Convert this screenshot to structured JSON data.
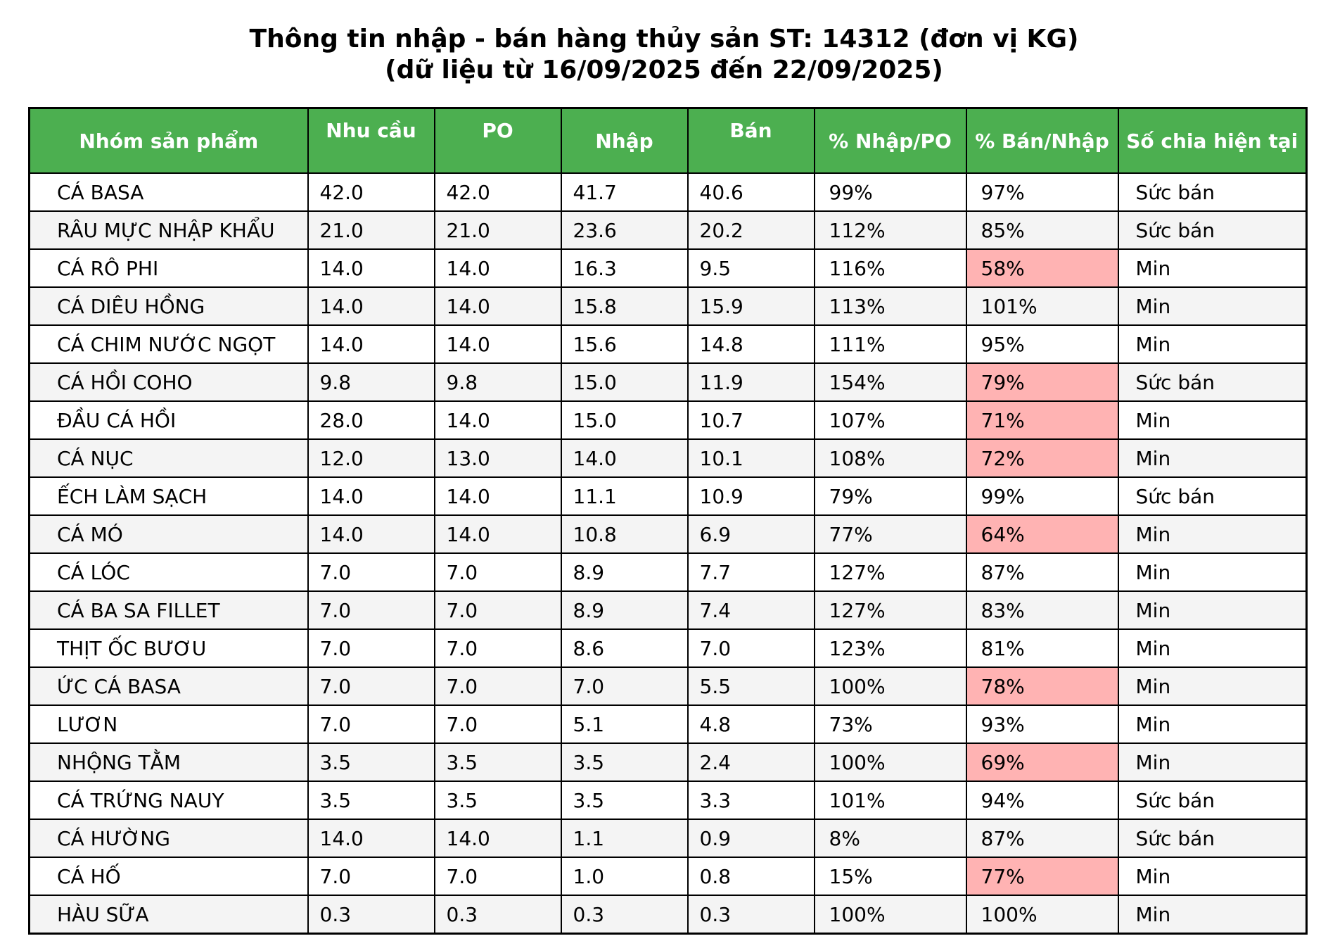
{
  "chart_data": {
    "type": "table",
    "title_line1": "Thông tin nhập - bán hàng thủy sản ST: 14312 (đơn vị KG)",
    "title_line2": "(dữ liệu từ 16/09/2025 đến 22/09/2025)",
    "columns": [
      "Nhóm sản phẩm",
      "Nhu cầu",
      "PO",
      "Nhập",
      "Bán",
      "% Nhập/PO",
      "% Bán/Nhập",
      "Số chia hiện tại"
    ],
    "rows": [
      {
        "cells": [
          "CÁ BASA",
          "42.0",
          "42.0",
          "41.7",
          "40.6",
          "99%",
          "97%",
          "Sức bán"
        ],
        "flag_ban_nhap": false
      },
      {
        "cells": [
          "RÂU MỰC NHẬP KHẨU",
          "21.0",
          "21.0",
          "23.6",
          "20.2",
          "112%",
          "85%",
          "Sức bán"
        ],
        "flag_ban_nhap": false
      },
      {
        "cells": [
          "CÁ RÔ PHI",
          "14.0",
          "14.0",
          "16.3",
          "9.5",
          "116%",
          "58%",
          "Min"
        ],
        "flag_ban_nhap": true
      },
      {
        "cells": [
          "CÁ DIÊU HỒNG",
          "14.0",
          "14.0",
          "15.8",
          "15.9",
          "113%",
          "101%",
          "Min"
        ],
        "flag_ban_nhap": false
      },
      {
        "cells": [
          "CÁ CHIM NƯỚC NGỌT",
          "14.0",
          "14.0",
          "15.6",
          "14.8",
          "111%",
          "95%",
          "Min"
        ],
        "flag_ban_nhap": false
      },
      {
        "cells": [
          "CÁ HỒI COHO",
          "9.8",
          "9.8",
          "15.0",
          "11.9",
          "154%",
          "79%",
          "Sức bán"
        ],
        "flag_ban_nhap": true
      },
      {
        "cells": [
          "ĐẦU CÁ HỒI",
          "28.0",
          "14.0",
          "15.0",
          "10.7",
          "107%",
          "71%",
          "Min"
        ],
        "flag_ban_nhap": true
      },
      {
        "cells": [
          "CÁ NỤC",
          "12.0",
          "13.0",
          "14.0",
          "10.1",
          "108%",
          "72%",
          "Min"
        ],
        "flag_ban_nhap": true
      },
      {
        "cells": [
          "ẾCH LÀM SẠCH",
          "14.0",
          "14.0",
          "11.1",
          "10.9",
          "79%",
          "99%",
          "Sức bán"
        ],
        "flag_ban_nhap": false
      },
      {
        "cells": [
          "CÁ MÓ",
          "14.0",
          "14.0",
          "10.8",
          "6.9",
          "77%",
          "64%",
          "Min"
        ],
        "flag_ban_nhap": true
      },
      {
        "cells": [
          "CÁ LÓC",
          "7.0",
          "7.0",
          "8.9",
          "7.7",
          "127%",
          "87%",
          "Min"
        ],
        "flag_ban_nhap": false
      },
      {
        "cells": [
          "CÁ BA SA FILLET",
          "7.0",
          "7.0",
          "8.9",
          "7.4",
          "127%",
          "83%",
          "Min"
        ],
        "flag_ban_nhap": false
      },
      {
        "cells": [
          "THỊT ỐC BƯƠU",
          "7.0",
          "7.0",
          "8.6",
          "7.0",
          "123%",
          "81%",
          "Min"
        ],
        "flag_ban_nhap": false
      },
      {
        "cells": [
          "ỨC CÁ BASA",
          "7.0",
          "7.0",
          "7.0",
          "5.5",
          "100%",
          "78%",
          "Min"
        ],
        "flag_ban_nhap": true
      },
      {
        "cells": [
          "LƯƠN",
          "7.0",
          "7.0",
          "5.1",
          "4.8",
          "73%",
          "93%",
          "Min"
        ],
        "flag_ban_nhap": false
      },
      {
        "cells": [
          "NHỘNG TẰM",
          "3.5",
          "3.5",
          "3.5",
          "2.4",
          "100%",
          "69%",
          "Min"
        ],
        "flag_ban_nhap": true
      },
      {
        "cells": [
          "CÁ TRỨNG NAUY",
          "3.5",
          "3.5",
          "3.5",
          "3.3",
          "101%",
          "94%",
          "Sức bán"
        ],
        "flag_ban_nhap": false
      },
      {
        "cells": [
          "CÁ HƯỜNG",
          "14.0",
          "14.0",
          "1.1",
          "0.9",
          "8%",
          "87%",
          "Sức bán"
        ],
        "flag_ban_nhap": false
      },
      {
        "cells": [
          "CÁ HỐ",
          "7.0",
          "7.0",
          "1.0",
          "0.8",
          "15%",
          "77%",
          "Min"
        ],
        "flag_ban_nhap": true
      },
      {
        "cells": [
          "HÀU SỮA",
          "0.3",
          "0.3",
          "0.3",
          "0.3",
          "100%",
          "100%",
          "Min"
        ],
        "flag_ban_nhap": false
      }
    ]
  },
  "colors": {
    "header_bg": "#4CAF50",
    "header_text": "#ffffff",
    "row_odd": "#ffffff",
    "row_even": "#f4f4f4",
    "highlight_low": "#FFB3B3",
    "border": "#000000"
  }
}
